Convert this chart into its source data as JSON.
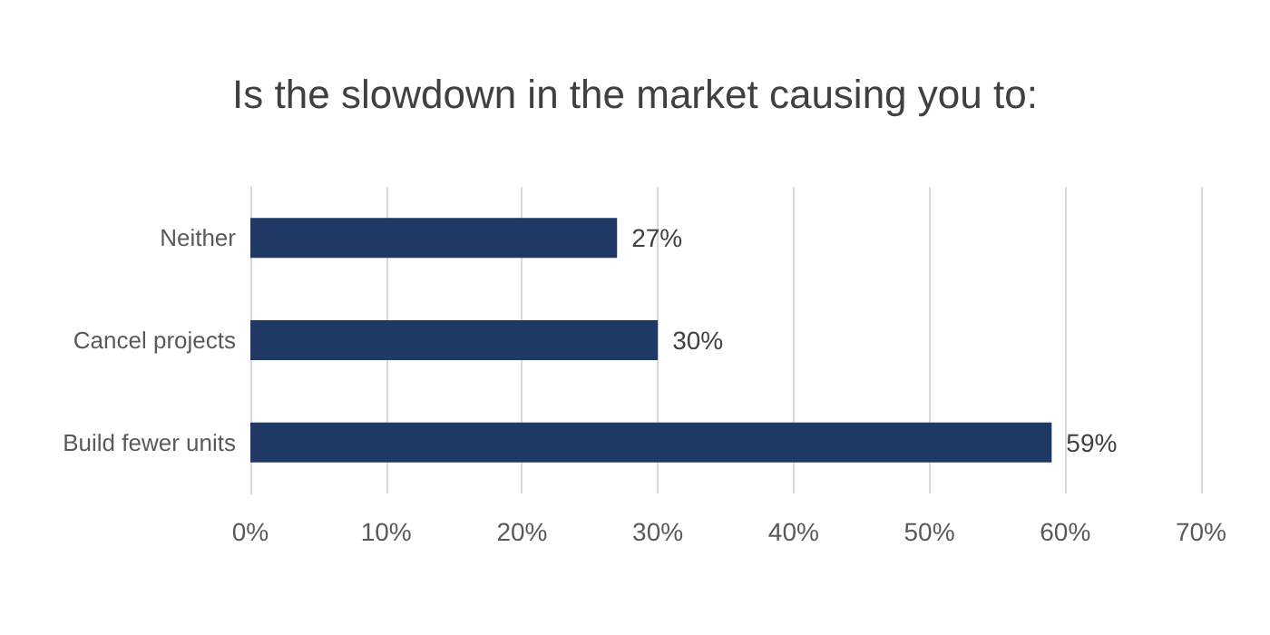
{
  "chart_data": {
    "type": "bar",
    "orientation": "horizontal",
    "title": "Is the slowdown in the market causing you to:",
    "categories": [
      "Neither",
      "Cancel projects",
      "Build fewer units"
    ],
    "values": [
      27,
      30,
      59
    ],
    "color": "#1f3864",
    "value_labels": [
      "27%",
      "30%",
      "59%"
    ],
    "xlim": [
      0,
      70
    ],
    "xticks": [
      {
        "value": 0,
        "label": "0%"
      },
      {
        "value": 10,
        "label": "10%"
      },
      {
        "value": 20,
        "label": "20%"
      },
      {
        "value": 30,
        "label": "30%"
      },
      {
        "value": 40,
        "label": "40%"
      },
      {
        "value": 50,
        "label": "50%"
      },
      {
        "value": 60,
        "label": "60%"
      },
      {
        "value": 70,
        "label": "70%"
      }
    ],
    "grid": "x"
  }
}
